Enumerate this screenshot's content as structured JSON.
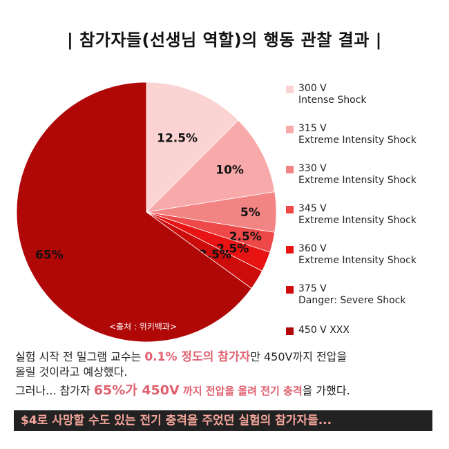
{
  "title": "| 참가자들(선생님 역할)의 행동 관찰 결과 |",
  "chart_data": {
    "type": "pie",
    "title": "| 참가자들(선생님 역할)의 행동 관찰 결과 |",
    "slices": [
      {
        "legend_line1": "300 V",
        "legend_line2": "Intense Shock",
        "value": 12.5,
        "label": "12.5%",
        "color": "#fbd3d3"
      },
      {
        "legend_line1": "315 V",
        "legend_line2": "Extreme Intensity Shock",
        "value": 10,
        "label": "10%",
        "color": "#f8a9a9"
      },
      {
        "legend_line1": "330 V",
        "legend_line2": "Extreme Intensity Shock",
        "value": 5,
        "label": "5%",
        "color": "#f38484"
      },
      {
        "legend_line1": "345 V",
        "legend_line2": "Extreme Intensity Shock",
        "value": 2.5,
        "label": "2.5%",
        "color": "#ee4848"
      },
      {
        "legend_line1": "360 V",
        "legend_line2": "Extreme Intensity Shock",
        "value": 2.5,
        "label": "2.5%",
        "color": "#e81313"
      },
      {
        "legend_line1": "375 V",
        "legend_line2": "Danger: Severe Shock",
        "value": 2.5,
        "label": "2.5%",
        "color": "#cc0b0b"
      },
      {
        "legend_line1": "450 V XXX",
        "legend_line2": "",
        "value": 65,
        "label": "65%",
        "color": "#b00707"
      }
    ],
    "legend_position": "right"
  },
  "source": "<출처 : 위키백과>",
  "text": {
    "p1_a": "실험 시작 전 밀그램 교수는 ",
    "p1_hl": "0.1% 정도의 참가자",
    "p1_b": "만 450V까지 전압을",
    "p2": "올릴 것이라고 예상했다.",
    "p3_a": "그러나... 참가자 ",
    "p3_hl1": "65%가 450V",
    "p3_hl2": " 까지 전압을 올려 전기 충격",
    "p3_b": "을 가했다."
  },
  "banner": "$4로 사망할 수도 있는 전기 충격을 주었던 실험의 참가자들..."
}
